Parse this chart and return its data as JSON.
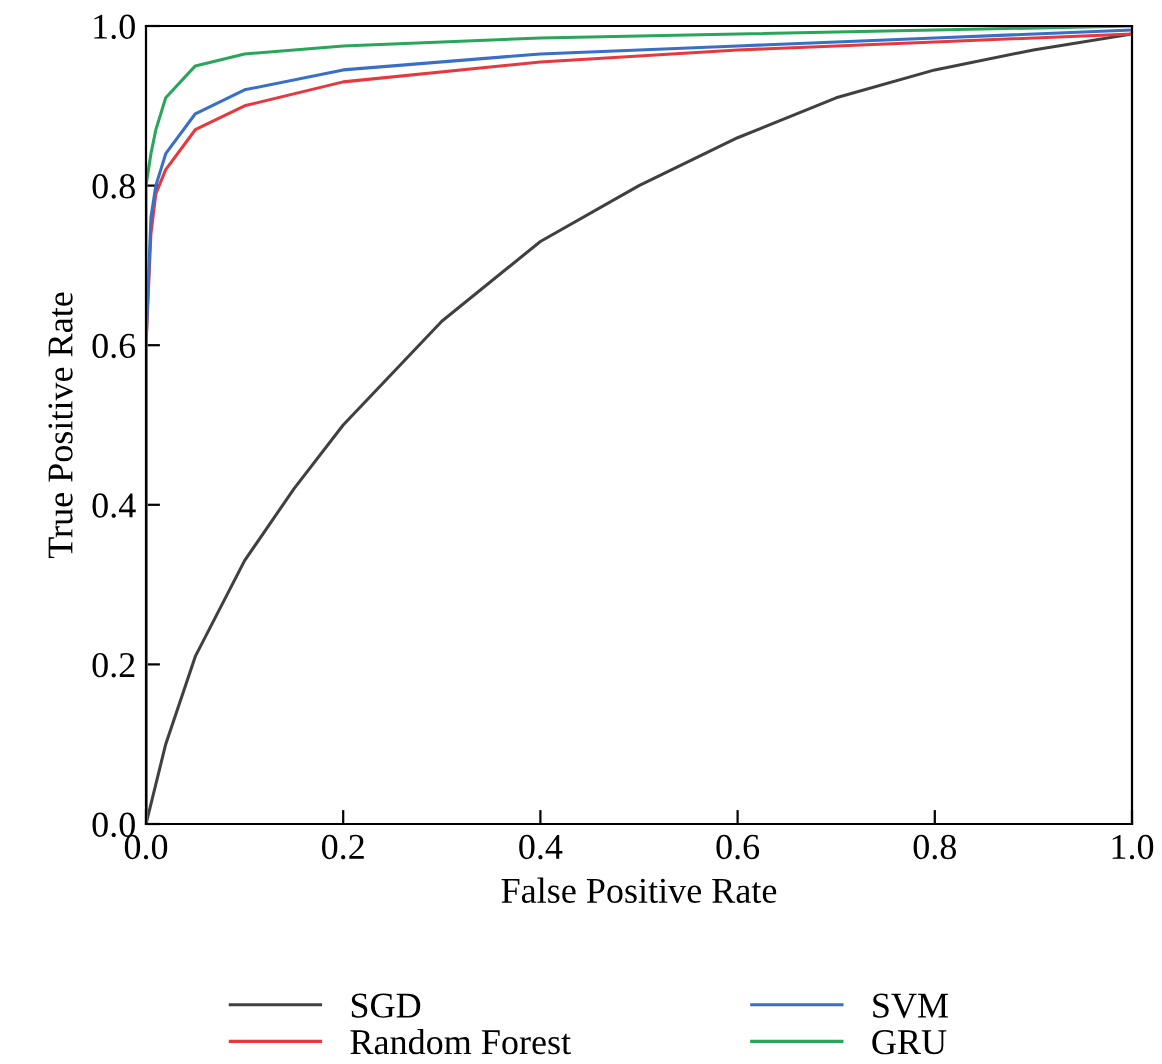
{
  "chart_data": {
    "type": "line",
    "xlabel": "False Positive Rate",
    "ylabel": "True Positive Rate",
    "xlim": [
      0,
      1
    ],
    "ylim": [
      0,
      1
    ],
    "xticks": [
      {
        "value": 0,
        "label": "0.0"
      },
      0.2,
      0.4,
      0.6,
      0.8,
      {
        "value": 1,
        "label": "1.0"
      }
    ],
    "yticks": [
      {
        "value": 0,
        "label": "0.0"
      },
      0.2,
      0.4,
      0.6,
      0.8,
      {
        "value": 1,
        "label": "1.0"
      }
    ],
    "grid": false,
    "legend": "bottom",
    "series": [
      {
        "name": "SGD",
        "color": "#404040",
        "x": [
          0,
          0.02,
          0.05,
          0.1,
          0.15,
          0.2,
          0.3,
          0.4,
          0.5,
          0.6,
          0.7,
          0.8,
          0.9,
          1
        ],
        "values": [
          0,
          0.1,
          0.21,
          0.33,
          0.42,
          0.5,
          0.63,
          0.73,
          0.8,
          0.86,
          0.91,
          0.945,
          0.97,
          0.99
        ]
      },
      {
        "name": "Random Forest",
        "color": "#e8383d",
        "x": [
          0,
          0,
          0.005,
          0.01,
          0.02,
          0.05,
          0.1,
          0.2,
          0.4,
          0.6,
          0.8,
          1
        ],
        "values": [
          0,
          0.6,
          0.74,
          0.79,
          0.82,
          0.87,
          0.9,
          0.93,
          0.955,
          0.97,
          0.98,
          0.99
        ]
      },
      {
        "name": "SVM",
        "color": "#3a6fc7",
        "x": [
          0,
          0,
          0.005,
          0.01,
          0.02,
          0.05,
          0.1,
          0.2,
          0.4,
          0.6,
          0.8,
          1
        ],
        "values": [
          0,
          0.6,
          0.76,
          0.8,
          0.84,
          0.89,
          0.92,
          0.945,
          0.965,
          0.975,
          0.985,
          0.995
        ]
      },
      {
        "name": "GRU",
        "color": "#2aa65a",
        "x": [
          0,
          0,
          0.005,
          0.01,
          0.02,
          0.05,
          0.1,
          0.2,
          0.4,
          0.6,
          0.8,
          1
        ],
        "values": [
          0,
          0.8,
          0.84,
          0.87,
          0.91,
          0.95,
          0.965,
          0.975,
          0.985,
          0.99,
          0.995,
          1
        ]
      }
    ]
  }
}
